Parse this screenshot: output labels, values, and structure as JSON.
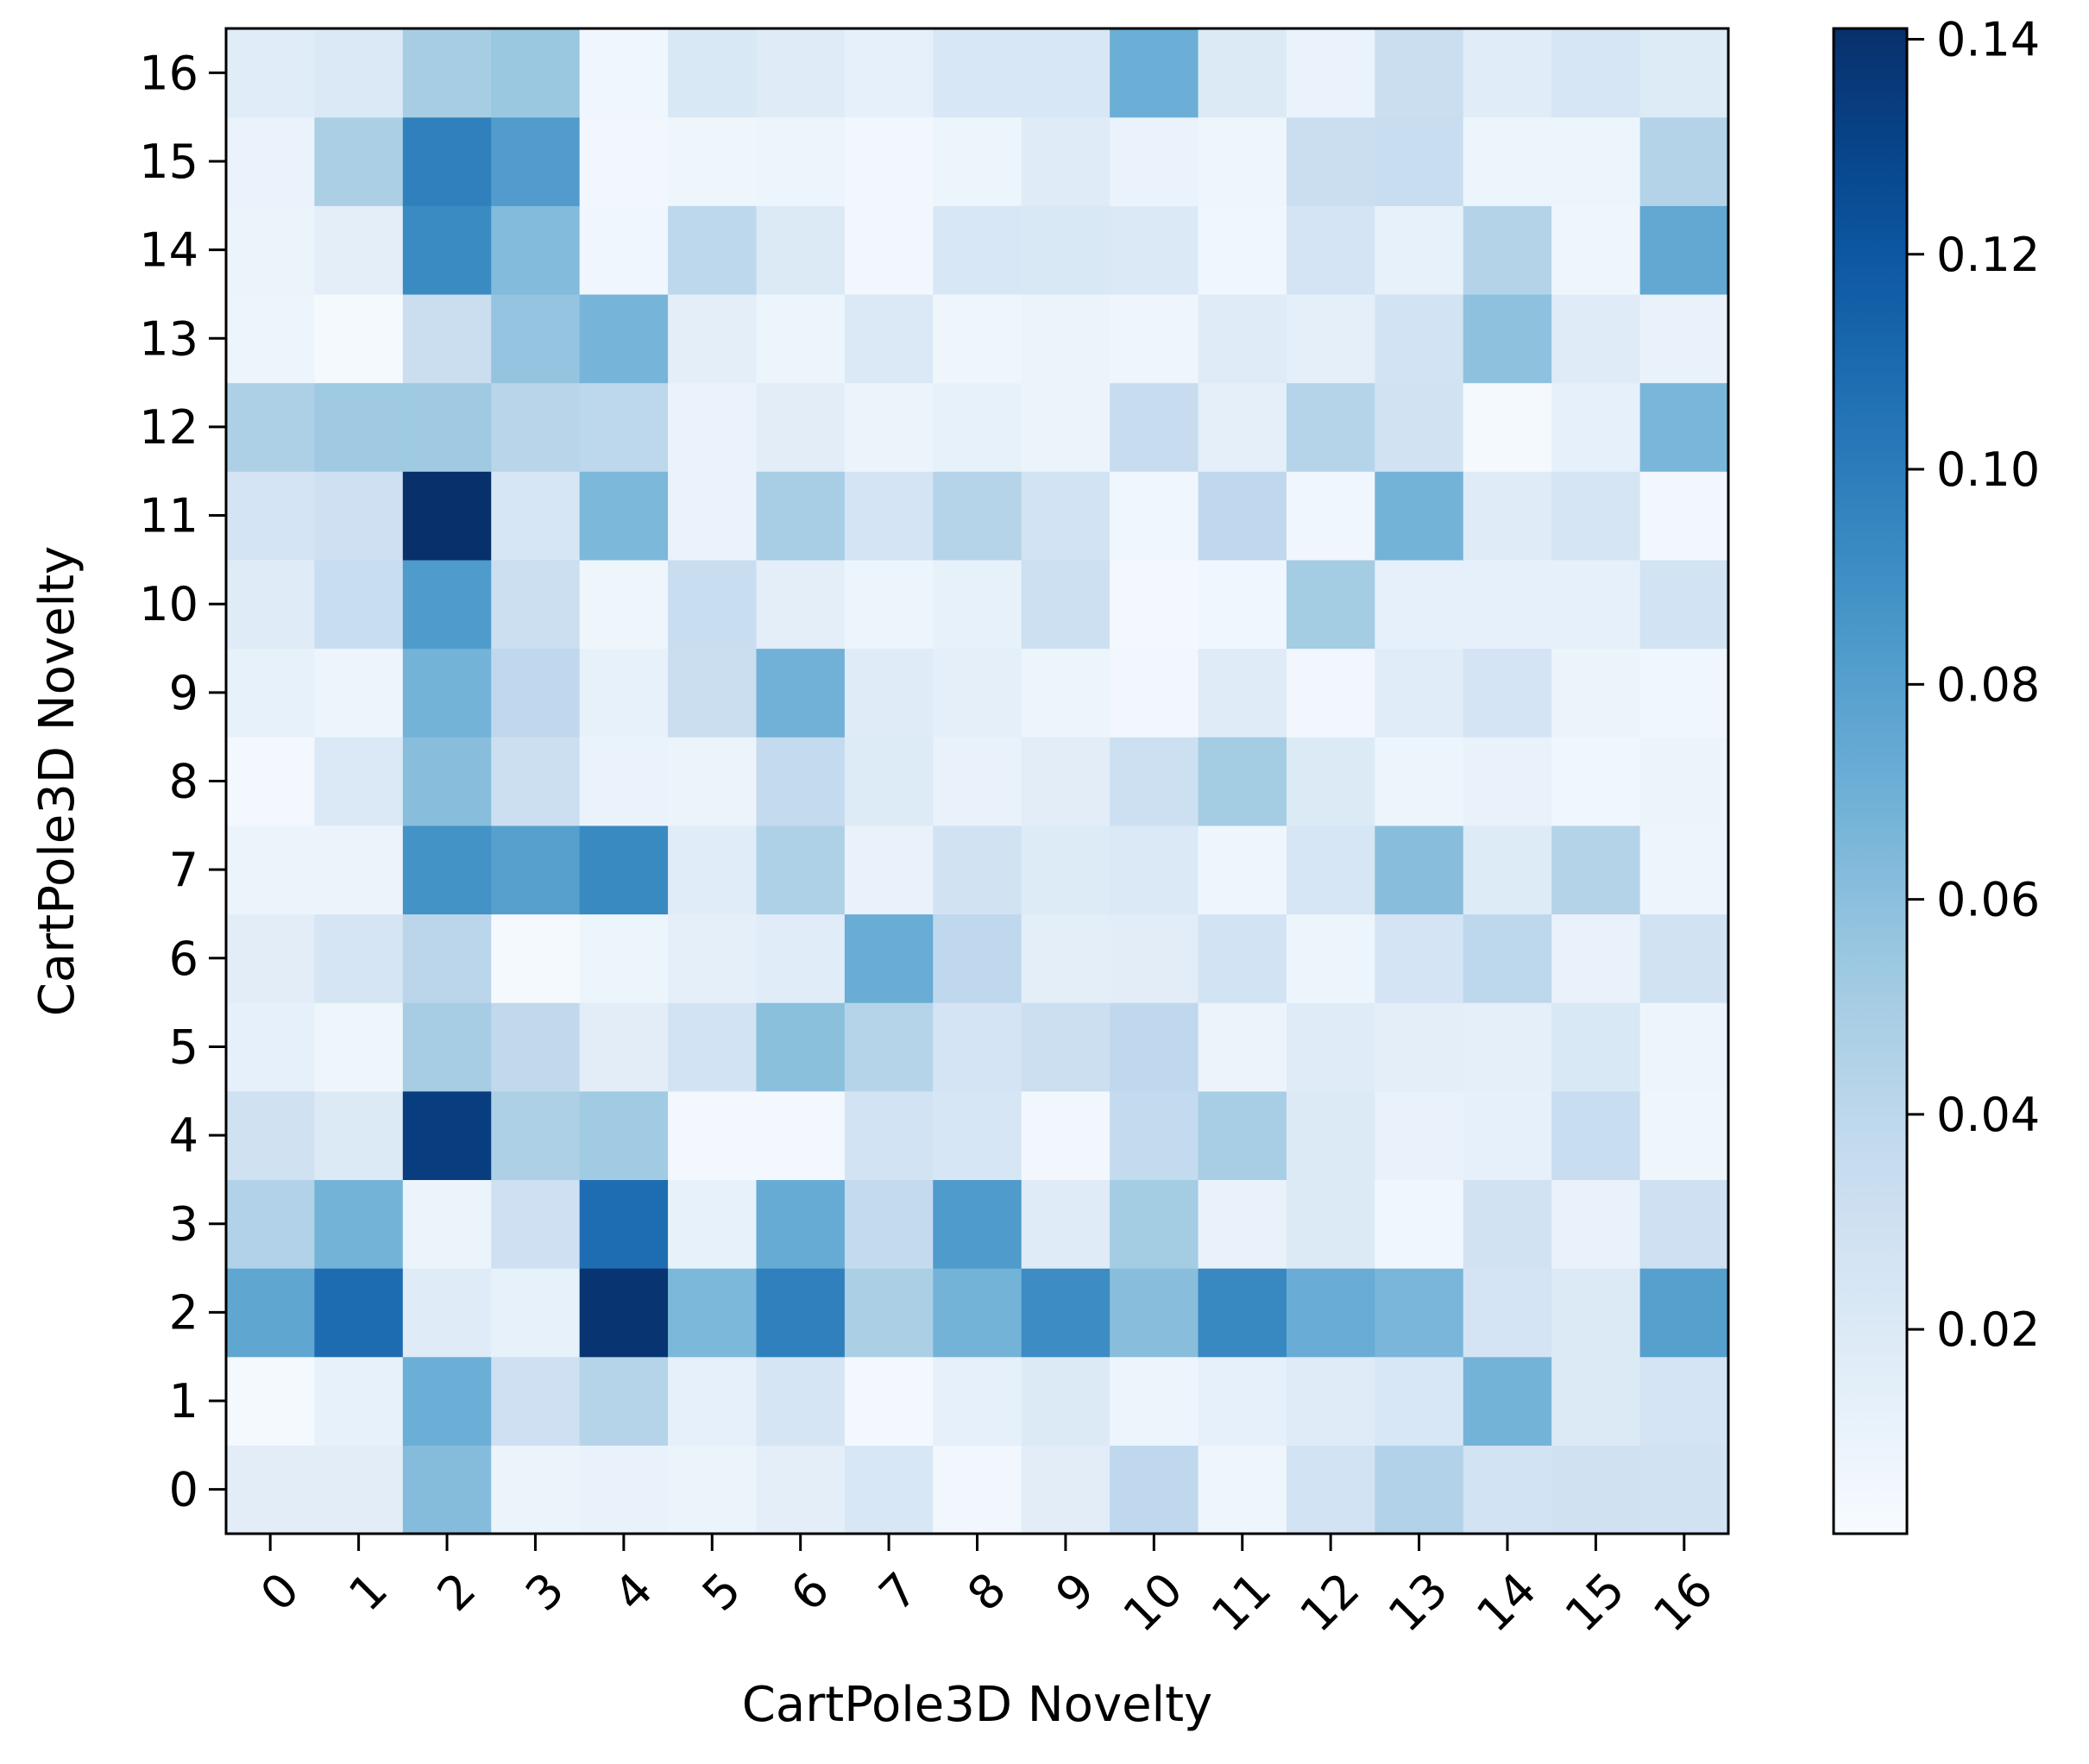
{
  "chart_data": {
    "type": "heatmap",
    "title": "",
    "xlabel": "CartPole3D Novelty",
    "ylabel": "CartPole3D Novelty",
    "x_categories": [
      "0",
      "1",
      "2",
      "3",
      "4",
      "5",
      "6",
      "7",
      "8",
      "9",
      "10",
      "11",
      "12",
      "13",
      "14",
      "15",
      "16"
    ],
    "y_categories": [
      "0",
      "1",
      "2",
      "3",
      "4",
      "5",
      "6",
      "7",
      "8",
      "9",
      "10",
      "11",
      "12",
      "13",
      "14",
      "15",
      "16"
    ],
    "colormap": "Blues",
    "colorbar": {
      "ticks": [
        0.02,
        0.04,
        0.06,
        0.08,
        0.1,
        0.12,
        0.14
      ],
      "tick_labels": [
        "0.02",
        "0.04",
        "0.06",
        "0.08",
        "0.10",
        "0.12",
        "0.14"
      ],
      "vmin": 0.001,
      "vmax": 0.141
    },
    "grid": false,
    "values_by_row": {
      "0": [
        0.016,
        0.016,
        0.062,
        0.009,
        0.011,
        0.009,
        0.015,
        0.023,
        0.005,
        0.016,
        0.039,
        0.007,
        0.027,
        0.045,
        0.027,
        0.029,
        0.028
      ],
      "1": [
        0.003,
        0.012,
        0.071,
        0.03,
        0.043,
        0.013,
        0.025,
        0.004,
        0.013,
        0.02,
        0.008,
        0.013,
        0.018,
        0.023,
        0.068,
        0.02,
        0.026
      ],
      "2": [
        0.076,
        0.109,
        0.018,
        0.012,
        0.139,
        0.065,
        0.098,
        0.048,
        0.068,
        0.091,
        0.061,
        0.094,
        0.072,
        0.066,
        0.026,
        0.02,
        0.08
      ],
      "3": [
        0.045,
        0.068,
        0.009,
        0.03,
        0.108,
        0.012,
        0.073,
        0.037,
        0.083,
        0.018,
        0.051,
        0.011,
        0.02,
        0.006,
        0.028,
        0.011,
        0.03
      ],
      "4": [
        0.029,
        0.02,
        0.134,
        0.047,
        0.052,
        0.004,
        0.004,
        0.027,
        0.024,
        0.005,
        0.037,
        0.049,
        0.02,
        0.011,
        0.013,
        0.034,
        0.007
      ],
      "5": [
        0.013,
        0.007,
        0.05,
        0.038,
        0.016,
        0.027,
        0.06,
        0.043,
        0.026,
        0.032,
        0.039,
        0.009,
        0.018,
        0.015,
        0.014,
        0.022,
        0.008
      ],
      "6": [
        0.016,
        0.025,
        0.041,
        0.003,
        0.008,
        0.014,
        0.017,
        0.072,
        0.039,
        0.015,
        0.016,
        0.027,
        0.008,
        0.026,
        0.04,
        0.011,
        0.028
      ],
      "7": [
        0.009,
        0.009,
        0.088,
        0.08,
        0.093,
        0.017,
        0.046,
        0.011,
        0.028,
        0.019,
        0.021,
        0.007,
        0.024,
        0.061,
        0.019,
        0.044,
        0.008
      ],
      "8": [
        0.004,
        0.021,
        0.061,
        0.032,
        0.01,
        0.009,
        0.037,
        0.019,
        0.011,
        0.016,
        0.031,
        0.051,
        0.02,
        0.008,
        0.011,
        0.006,
        0.009
      ],
      "9": [
        0.012,
        0.008,
        0.068,
        0.039,
        0.012,
        0.033,
        0.069,
        0.018,
        0.014,
        0.008,
        0.005,
        0.018,
        0.005,
        0.017,
        0.026,
        0.009,
        0.006
      ],
      "10": [
        0.018,
        0.034,
        0.083,
        0.032,
        0.007,
        0.034,
        0.015,
        0.008,
        0.012,
        0.031,
        0.004,
        0.006,
        0.051,
        0.013,
        0.013,
        0.013,
        0.027
      ],
      "11": [
        0.026,
        0.03,
        0.141,
        0.024,
        0.065,
        0.01,
        0.049,
        0.026,
        0.043,
        0.027,
        0.006,
        0.039,
        0.006,
        0.068,
        0.018,
        0.025,
        0.005
      ],
      "12": [
        0.047,
        0.053,
        0.053,
        0.042,
        0.04,
        0.01,
        0.016,
        0.009,
        0.012,
        0.009,
        0.035,
        0.014,
        0.043,
        0.028,
        0.003,
        0.013,
        0.066
      ],
      "13": [
        0.008,
        0.003,
        0.033,
        0.057,
        0.067,
        0.015,
        0.008,
        0.021,
        0.007,
        0.009,
        0.007,
        0.018,
        0.014,
        0.027,
        0.059,
        0.018,
        0.011
      ],
      "14": [
        0.009,
        0.015,
        0.092,
        0.063,
        0.006,
        0.04,
        0.02,
        0.005,
        0.023,
        0.022,
        0.021,
        0.006,
        0.026,
        0.012,
        0.044,
        0.007,
        0.075
      ],
      "15": [
        0.01,
        0.048,
        0.098,
        0.082,
        0.005,
        0.007,
        0.008,
        0.005,
        0.008,
        0.018,
        0.01,
        0.007,
        0.033,
        0.034,
        0.008,
        0.008,
        0.044
      ],
      "16": [
        0.017,
        0.021,
        0.05,
        0.055,
        0.006,
        0.022,
        0.018,
        0.013,
        0.023,
        0.023,
        0.071,
        0.02,
        0.01,
        0.033,
        0.017,
        0.024,
        0.019
      ]
    }
  }
}
